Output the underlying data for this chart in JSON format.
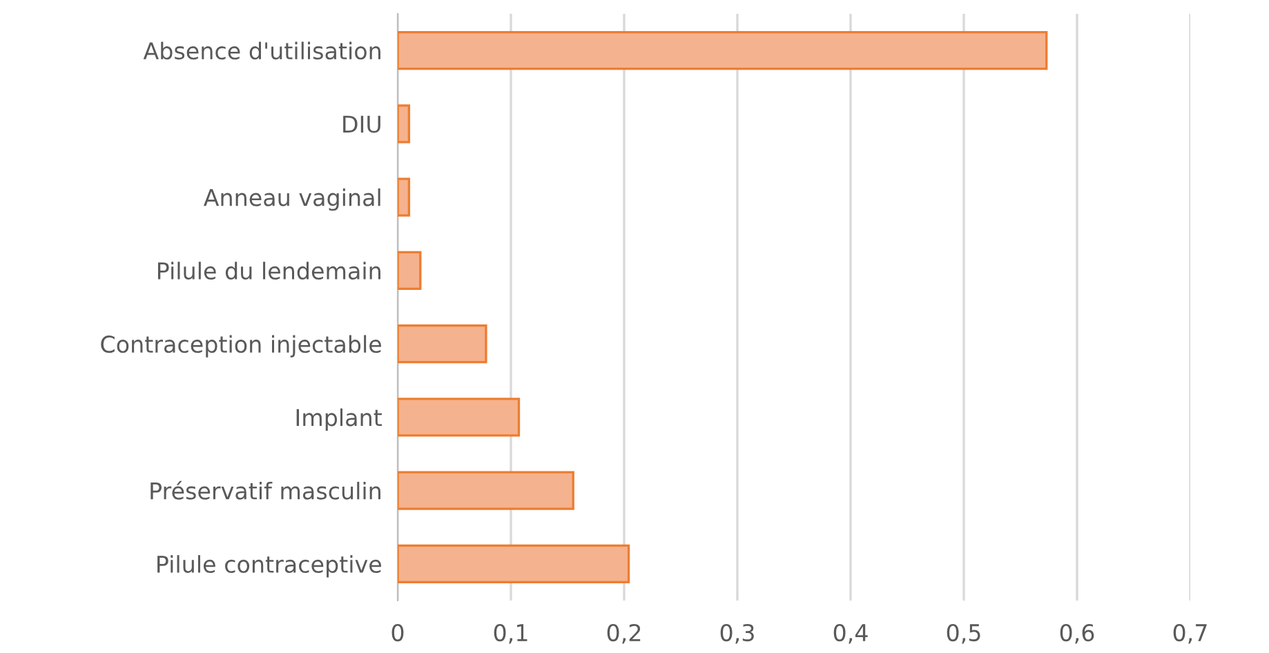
{
  "chart_data": {
    "type": "bar",
    "orientation": "horizontal",
    "categories": [
      "Absence d'utilisation",
      "DIU",
      "Anneau vaginal",
      "Pilule du lendemain",
      "Contraception injectable",
      "Implant",
      "Préservatif masculin",
      "Pilule contraceptive"
    ],
    "values": [
      0.573,
      0.01,
      0.01,
      0.02,
      0.078,
      0.107,
      0.155,
      0.204
    ],
    "color": "#f5b28e",
    "xlim": [
      0,
      0.7
    ],
    "xticks": [
      {
        "value": 0,
        "label": "0"
      },
      {
        "value": 0.1,
        "label": "0,1"
      },
      {
        "value": 0.2,
        "label": "0,2"
      },
      {
        "value": 0.3,
        "label": "0,3"
      },
      {
        "value": 0.4,
        "label": "0,4"
      },
      {
        "value": 0.5,
        "label": "0,5"
      },
      {
        "value": 0.6,
        "label": "0,6"
      },
      {
        "value": 0.7,
        "label": "0,7"
      }
    ],
    "grid": "x"
  }
}
